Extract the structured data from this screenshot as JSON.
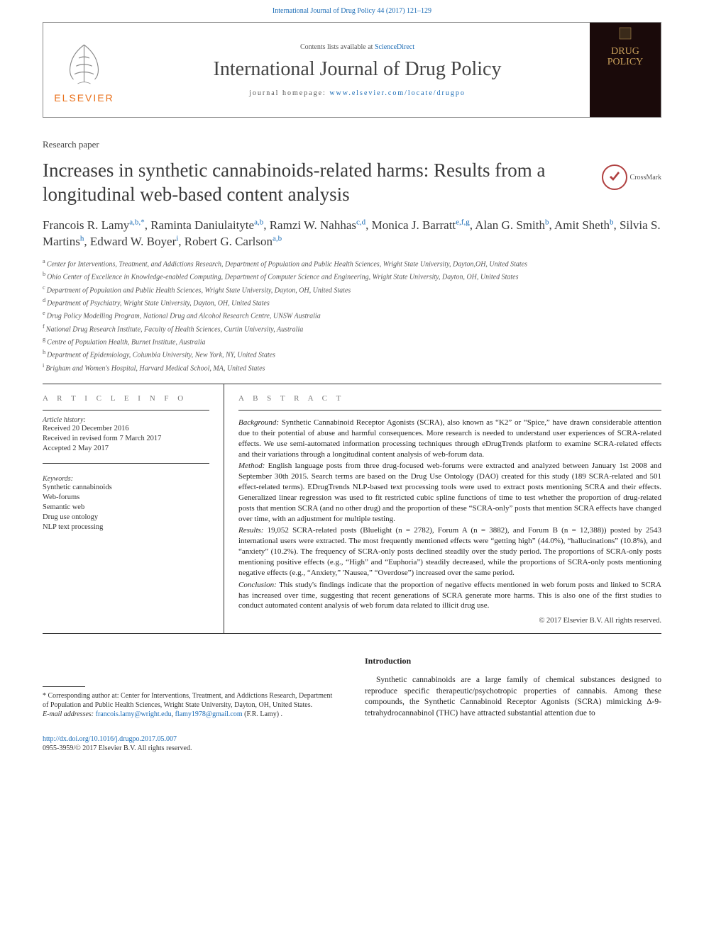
{
  "topCitation": "International Journal of Drug Policy 44 (2017) 121–129",
  "header": {
    "contentsPrefix": "Contents lists available at ",
    "contentsLink": "ScienceDirect",
    "journalName": "International Journal of Drug Policy",
    "homepagePrefix": "journal homepage: ",
    "homepageUrl": "www.elsevier.com/locate/drugpo",
    "publisher": "ELSEVIER",
    "coverTitle1": "DRUG",
    "coverTitle2": "POLICY"
  },
  "articleType": "Research paper",
  "title": "Increases in synthetic cannabinoids-related harms: Results from a longitudinal web-based content analysis",
  "crossmark": "CrossMark",
  "authors": [
    {
      "name": "Francois R. Lamy",
      "aff": "a,b,",
      "corr": "*"
    },
    {
      "name": "Raminta Daniulaityte",
      "aff": "a,b"
    },
    {
      "name": "Ramzi W. Nahhas",
      "aff": "c,d"
    },
    {
      "name": "Monica J. Barratt",
      "aff": "e,f,g"
    },
    {
      "name": "Alan G. Smith",
      "aff": "b"
    },
    {
      "name": "Amit Sheth",
      "aff": "b"
    },
    {
      "name": "Silvia S. Martins",
      "aff": "h"
    },
    {
      "name": "Edward W. Boyer",
      "aff": "i"
    },
    {
      "name": "Robert G. Carlson",
      "aff": "a,b"
    }
  ],
  "affiliations": [
    {
      "k": "a",
      "t": "Center for Interventions, Treatment, and Addictions Research, Department of Population and Public Health Sciences, Wright State University, Dayton,OH, United States"
    },
    {
      "k": "b",
      "t": "Ohio Center of Excellence in Knowledge-enabled Computing, Department of Computer Science and Engineering, Wright State University, Dayton, OH, United States"
    },
    {
      "k": "c",
      "t": "Department of Population and Public Health Sciences, Wright State University, Dayton, OH, United States"
    },
    {
      "k": "d",
      "t": "Department of Psychiatry, Wright State University, Dayton, OH, United States"
    },
    {
      "k": "e",
      "t": "Drug Policy Modelling Program, National Drug and Alcohol Research Centre, UNSW Australia"
    },
    {
      "k": "f",
      "t": "National Drug Research Institute, Faculty of Health Sciences, Curtin University, Australia"
    },
    {
      "k": "g",
      "t": "Centre of Population Health, Burnet Institute, Australia"
    },
    {
      "k": "h",
      "t": "Department of Epidemiology, Columbia University, New York, NY, United States"
    },
    {
      "k": "i",
      "t": "Brigham and Women's Hospital, Harvard Medical School, MA, United States"
    }
  ],
  "articleInfo": {
    "label": "A R T I C L E  I N F O",
    "historyLabel": "Article history:",
    "history": [
      "Received 20 December 2016",
      "Received in revised form 7 March 2017",
      "Accepted 2 May 2017"
    ],
    "keywordsLabel": "Keywords:",
    "keywords": [
      "Synthetic cannabinoids",
      "Web-forums",
      "Semantic web",
      "Drug use ontology",
      "NLP text processing"
    ]
  },
  "abstract": {
    "label": "A B S T R A C T",
    "paras": [
      {
        "lead": "Background:",
        "text": " Synthetic Cannabinoid Receptor Agonists (SCRA), also known as “K2” or “Spice,” have drawn considerable attention due to their potential of abuse and harmful consequences. More research is needed to understand user experiences of SCRA-related effects. We use semi-automated information processing techniques through eDrugTrends platform to examine SCRA-related effects and their variations through a longitudinal content analysis of web-forum data."
      },
      {
        "lead": "Method:",
        "text": " English language posts from three drug-focused web-forums were extracted and analyzed between January 1st 2008 and September 30th 2015. Search terms are based on the Drug Use Ontology (DAO) created for this study (189 SCRA-related and 501 effect-related terms). EDrugTrends NLP-based text processing tools were used to extract posts mentioning SCRA and their effects. Generalized linear regression was used to fit restricted cubic spline functions of time to test whether the proportion of drug-related posts that mention SCRA (and no other drug) and the proportion of these “SCRA-only” posts that mention SCRA effects have changed over time, with an adjustment for multiple testing."
      },
      {
        "lead": "Results:",
        "text": " 19,052 SCRA-related posts (Bluelight (n = 2782), Forum A (n = 3882), and Forum B (n = 12,388)) posted by 2543 international users were extracted. The most frequently mentioned effects were “getting high” (44.0%), “hallucinations” (10.8%), and “anxiety” (10.2%). The frequency of SCRA-only posts declined steadily over the study period. The proportions of SCRA-only posts mentioning positive effects (e.g., “High” and “Euphoria”) steadily decreased, while the proportions of SCRA-only posts mentioning negative effects (e.g., “Anxiety,” 'Nausea,” “Overdose”) increased over the same period."
      },
      {
        "lead": "Conclusion:",
        "text": " This study's findings indicate that the proportion of negative effects mentioned in web forum posts and linked to SCRA has increased over time, suggesting that recent generations of SCRA generate more harms. This is also one of the first studies to conduct automated content analysis of web forum data related to illicit drug use."
      }
    ],
    "copyright": "© 2017 Elsevier B.V. All rights reserved."
  },
  "introduction": {
    "heading": "Introduction",
    "para": "Synthetic cannabinoids are a large family of chemical substances designed to reproduce specific therapeutic/psychotropic properties of cannabis. Among these compounds, the Synthetic Cannabinoid Receptor Agonists (SCRA) mimicking Δ-9-tetrahydrocannabinol (THC) have attracted substantial attention due to"
  },
  "correspondence": {
    "star": "*",
    "text": " Corresponding author at: Center for Interventions, Treatment, and Addictions Research, Department of Population and Public Health Sciences, Wright State University, Dayton, OH, United States.",
    "emailLabel": "E-mail addresses: ",
    "email1": "francois.lamy@wright.edu",
    "sep": ", ",
    "email2": "flamy1978@gmail.com",
    "emailSuffix": " (F.R. Lamy)"
  },
  "footer": {
    "doi": "http://dx.doi.org/10.1016/j.drugpo.2017.05.007",
    "issn": "0955-3959/© 2017 Elsevier B.V. All rights reserved."
  },
  "colors": {
    "link": "#1a6bb5",
    "elsevierOrange": "#e9711c",
    "coverGold": "#c9a05b",
    "crossmarkRed": "#b04040"
  }
}
